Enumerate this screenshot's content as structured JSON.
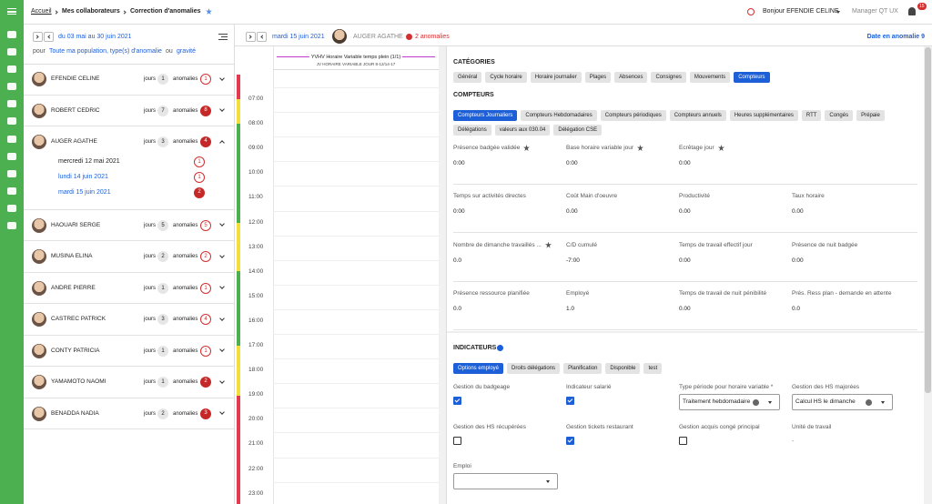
{
  "header": {
    "breadcrumb": [
      "Accueil",
      "Mes collaborateurs",
      "Correction d'anomalies"
    ],
    "greeting": "Bonjour EFENDIE CELINE",
    "role": "Manager QT UX",
    "notifications": "15"
  },
  "left_panel": {
    "period": "du 03 mai au 30 juin 2021",
    "filter": {
      "prefix": "pour",
      "population": "Toute ma population, type(s) d'anomalie",
      "separator": "ou",
      "severity": "gravité"
    },
    "days_label": "jours",
    "anomalies_label": "anomalies",
    "employees": [
      {
        "name": "EFENDIE CELINE",
        "days": 1,
        "anomalies": 1,
        "severe": false
      },
      {
        "name": "ROBERT CEDRIC",
        "days": 7,
        "anomalies": 8,
        "severe": true
      },
      {
        "name": "AUGER AGATHE",
        "days": 3,
        "anomalies": 4,
        "severe": true,
        "dates": [
          {
            "date": "mercredi 12 mai 2021",
            "anomalies": 1,
            "severe": false
          },
          {
            "date": "lundi 14 juin 2021",
            "anomalies": 1,
            "severe": false
          },
          {
            "date": "mardi 15 juin 2021",
            "anomalies": 2,
            "severe": true
          }
        ]
      },
      {
        "name": "HAOUARI SERGE",
        "days": 5,
        "anomalies": 5,
        "severe": false
      },
      {
        "name": "MUSINA ELINA",
        "days": 2,
        "anomalies": 2,
        "severe": false
      },
      {
        "name": "ANDRE PIERRE",
        "days": 1,
        "anomalies": 1,
        "severe": false
      },
      {
        "name": "CASTREC PATRICK",
        "days": 3,
        "anomalies": 4,
        "severe": false
      },
      {
        "name": "CONTY PATRICIA",
        "days": 1,
        "anomalies": 1,
        "severe": false
      },
      {
        "name": "YAMAMOTO NAOMI",
        "days": 1,
        "anomalies": 2,
        "severe": true
      },
      {
        "name": "BENADDA NADIA",
        "days": 2,
        "anomalies": 3,
        "severe": true
      }
    ]
  },
  "day_view": {
    "date": "mardi 15 juin 2021",
    "employee": "AUGER AGATHE",
    "anomalies": "2 anomalies",
    "schedule": "YVHV Horaire Variable temps plein (1/1)",
    "schedule_detail": "JV HORAIRE VARIABLE JOUR 8-12/14-17",
    "hours": [
      "07:00",
      "08:00",
      "09:00",
      "10:00",
      "11:00",
      "12:00",
      "13:00",
      "14:00",
      "15:00",
      "16:00",
      "17:00",
      "18:00",
      "19:00",
      "20:00",
      "21:00",
      "22:00",
      "23:00"
    ]
  },
  "detail_panel": {
    "date_anomaly": "Date en anomalie 9",
    "categories": {
      "title": "CATÉGORIES",
      "items": [
        "Général",
        "Cycle horaire",
        "Horaire journalier",
        "Plages",
        "Absences",
        "Consignes",
        "Mouvements",
        "Compteurs"
      ],
      "active": 7
    },
    "counters": {
      "title": "COMPTEURS",
      "items": [
        "Compteurs Journaliers",
        "Compteurs Hebdomadaires",
        "Compteurs périodiques",
        "Compteurs annuels",
        "Heures supplémentaires",
        "RTT",
        "Congés",
        "Prépaie",
        "Délégations",
        "valeurs aux 030.04",
        "Délégation CSE"
      ],
      "active": 0,
      "fields": [
        [
          {
            "label": "Présence badgée validée",
            "value": "0:00",
            "starred": true
          },
          {
            "label": "Base horaire variable jour",
            "value": "0:00",
            "starred": true
          },
          {
            "label": "Ecrêtage jour",
            "value": "0:00",
            "starred": true
          }
        ],
        [
          {
            "label": "Temps sur activités directes",
            "value": "0:00"
          },
          {
            "label": "Coût Main d'oeuvre",
            "value": "0.00"
          },
          {
            "label": "Productivité",
            "value": "0.00"
          },
          {
            "label": "Taux horaire",
            "value": "0.00"
          }
        ],
        [
          {
            "label": "Nombre de dimanche travaillés ...",
            "value": "0.0",
            "starred": true
          },
          {
            "label": "C/D cumulé",
            "value": "-7:00"
          },
          {
            "label": "Temps de travail effectif jour",
            "value": "0:00"
          },
          {
            "label": "Présence de nuit badgée",
            "value": "0:00"
          }
        ],
        [
          {
            "label": "Présence ressource planifiée",
            "value": "0.0"
          },
          {
            "label": "Employé",
            "value": "1.0"
          },
          {
            "label": "Temps de travail de nuit pénibilité",
            "value": "0.00"
          },
          {
            "label": "Prés. Ress plan - demande en attente",
            "value": "0.0"
          }
        ]
      ]
    },
    "indicators": {
      "title": "INDICATEURS",
      "tabs": [
        "Options employé",
        "Droits délégations",
        "Planification",
        "Disponible",
        "test"
      ],
      "active": 0,
      "fields": [
        [
          {
            "label": "Gestion du badgeage",
            "type": "checkbox",
            "checked": true
          },
          {
            "label": "Indicateur salarié",
            "type": "checkbox",
            "checked": true
          },
          {
            "label": "Type période pour horaire variable *",
            "type": "select",
            "value": "Traitement hebdomadaire"
          },
          {
            "label": "Gestion des HS majorées",
            "type": "select",
            "value": "Calcul HS le dimanche"
          }
        ],
        [
          {
            "label": "Gestion des HS récupérées",
            "type": "checkbox",
            "checked": false
          },
          {
            "label": "Gestion tickets restaurant",
            "type": "checkbox",
            "checked": true
          },
          {
            "label": "Gestion acquis congé principal",
            "type": "checkbox",
            "checked": false
          },
          {
            "label": "Unité de travail",
            "type": "text",
            "value": "-"
          }
        ],
        [
          {
            "label": "Emploi",
            "type": "select"
          }
        ]
      ]
    }
  }
}
